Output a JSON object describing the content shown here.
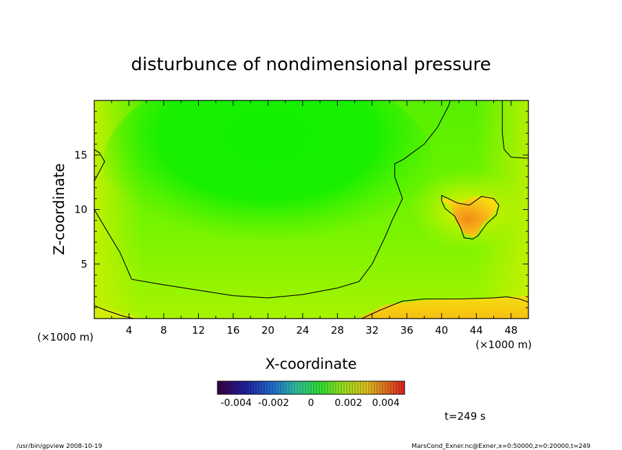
{
  "chart_data": {
    "type": "heatmap",
    "title": "disturbunce of nondimensional pressure",
    "xlabel": "X-coordinate",
    "ylabel": "Z-coordinate",
    "x_unit": "(×1000 m)",
    "y_unit": "(×1000 m)",
    "xlim": [
      0,
      50
    ],
    "ylim": [
      0,
      20
    ],
    "x_ticks": [
      4,
      8,
      12,
      16,
      20,
      24,
      28,
      32,
      36,
      40,
      44,
      48
    ],
    "y_ticks": [
      5,
      10,
      15
    ],
    "colorbar": {
      "range": [
        -0.005,
        0.005
      ],
      "tick_values": [
        -0.004,
        -0.002,
        0,
        0.002,
        0.004
      ],
      "tick_labels": [
        "-0.004",
        "-0.002",
        "0",
        "0.002",
        "0.004"
      ]
    },
    "contour_lines": [
      {
        "name": "zero-contour-main",
        "points": [
          [
            0,
            12.6
          ],
          [
            1.2,
            14.4
          ],
          [
            0.6,
            15.2
          ],
          [
            0,
            15.5
          ],
          [
            0,
            12.6
          ],
          [
            0,
            10
          ],
          [
            1.5,
            8
          ],
          [
            3,
            6
          ],
          [
            4.3,
            3.6
          ],
          [
            8,
            3.1
          ],
          [
            12,
            2.6
          ],
          [
            16,
            2.1
          ],
          [
            20,
            1.9
          ],
          [
            24,
            2.2
          ],
          [
            28,
            2.8
          ],
          [
            30.5,
            3.4
          ],
          [
            32,
            5
          ],
          [
            33.5,
            7.5
          ],
          [
            34.3,
            9
          ],
          [
            35.5,
            11
          ],
          [
            34.6,
            13
          ],
          [
            34.6,
            14.2
          ],
          [
            35.6,
            14.6
          ],
          [
            38,
            16
          ],
          [
            39.5,
            17.5
          ],
          [
            40.8,
            19.5
          ],
          [
            41,
            20
          ]
        ]
      },
      {
        "name": "zero-contour-top-right",
        "points": [
          [
            47,
            20
          ],
          [
            47,
            17
          ],
          [
            47.2,
            15.5
          ],
          [
            48,
            14.8
          ],
          [
            50,
            14.7
          ]
        ]
      },
      {
        "name": "zero-contour-bottom-left",
        "points": [
          [
            0,
            1.2
          ],
          [
            1.2,
            0.8
          ],
          [
            3,
            0.3
          ],
          [
            4.5,
            0
          ]
        ]
      },
      {
        "name": "zero-contour-bottom-right",
        "points": [
          [
            30.8,
            0
          ],
          [
            33,
            0.8
          ],
          [
            35.5,
            1.6
          ],
          [
            38,
            1.8
          ],
          [
            42,
            1.8
          ],
          [
            46,
            1.9
          ],
          [
            47.5,
            2
          ],
          [
            49,
            1.8
          ],
          [
            50,
            1.5
          ]
        ]
      },
      {
        "name": "zero-contour-blob",
        "points": [
          [
            40,
            11.3
          ],
          [
            41.8,
            10.6
          ],
          [
            43.2,
            10.4
          ],
          [
            44.6,
            11.2
          ],
          [
            46,
            11
          ],
          [
            46.6,
            10.4
          ],
          [
            46.3,
            9.5
          ],
          [
            45.2,
            8.7
          ],
          [
            44.2,
            7.6
          ],
          [
            43.6,
            7.3
          ],
          [
            42.6,
            7.4
          ],
          [
            42.2,
            8.3
          ],
          [
            41.5,
            9.4
          ],
          [
            40.4,
            10.1
          ],
          [
            40,
            10.8
          ],
          [
            40,
            11.3
          ]
        ]
      }
    ]
  },
  "time_label": "t=249 s",
  "footer_left": "/usr/bin/gpview  2008-10-19",
  "footer_right": "MarsCond_Exner.nc@Exner,x=0:50000,z=0:20000,t=249"
}
